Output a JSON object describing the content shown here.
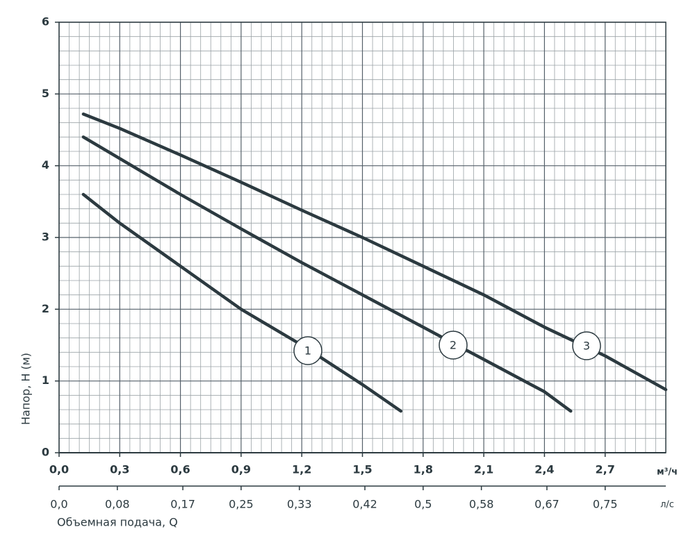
{
  "chart_data": {
    "type": "line",
    "y_label": "Напор, H (м)",
    "x_label": "Объемная подача, Q",
    "x_unit": "м³/ч",
    "x2_unit": "л/с",
    "xlim": [
      0,
      3.0
    ],
    "ylim": [
      0,
      6
    ],
    "x2lim": [
      0,
      0.8333
    ],
    "grid": true,
    "xticks": [
      {
        "value": 0,
        "label": "0,0"
      },
      {
        "value": 0.3,
        "label": "0,3"
      },
      {
        "value": 0.6,
        "label": "0,6"
      },
      {
        "value": 0.9,
        "label": "0,9"
      },
      {
        "value": 1.2,
        "label": "1,2"
      },
      {
        "value": 1.5,
        "label": "1,5"
      },
      {
        "value": 1.8,
        "label": "1,8"
      },
      {
        "value": 2.1,
        "label": "2,1"
      },
      {
        "value": 2.4,
        "label": "2,4"
      },
      {
        "value": 2.7,
        "label": "2,7"
      }
    ],
    "x2ticks": [
      {
        "value": 0,
        "label": "0,0"
      },
      {
        "value": 0.08,
        "label": "0,08"
      },
      {
        "value": 0.17,
        "label": "0,17"
      },
      {
        "value": 0.25,
        "label": "0,25"
      },
      {
        "value": 0.33,
        "label": "0,33"
      },
      {
        "value": 0.42,
        "label": "0,42"
      },
      {
        "value": 0.5,
        "label": "0,5"
      },
      {
        "value": 0.58,
        "label": "0,58"
      },
      {
        "value": 0.67,
        "label": "0,67"
      },
      {
        "value": 0.75,
        "label": "0,75"
      }
    ],
    "yticks": [
      0,
      1,
      2,
      3,
      4,
      5,
      6
    ],
    "series": [
      {
        "name": "1",
        "color": "#2c3a40",
        "x": [
          0.12,
          0.3,
          0.6,
          0.9,
          1.2,
          1.5,
          1.69
        ],
        "values": [
          3.6,
          3.2,
          2.6,
          2.0,
          1.5,
          0.95,
          0.58
        ]
      },
      {
        "name": "2",
        "color": "#2c3a40",
        "x": [
          0.12,
          0.3,
          0.6,
          0.9,
          1.2,
          1.5,
          1.8,
          2.1,
          2.4,
          2.53
        ],
        "values": [
          4.4,
          4.1,
          3.6,
          3.12,
          2.65,
          2.2,
          1.75,
          1.3,
          0.85,
          0.58
        ]
      },
      {
        "name": "3",
        "color": "#2c3a40",
        "x": [
          0.12,
          0.3,
          0.6,
          0.9,
          1.2,
          1.5,
          1.8,
          2.1,
          2.4,
          2.7,
          3.0
        ],
        "values": [
          4.72,
          4.52,
          4.15,
          3.77,
          3.38,
          3.0,
          2.6,
          2.2,
          1.75,
          1.35,
          0.88
        ]
      }
    ]
  }
}
